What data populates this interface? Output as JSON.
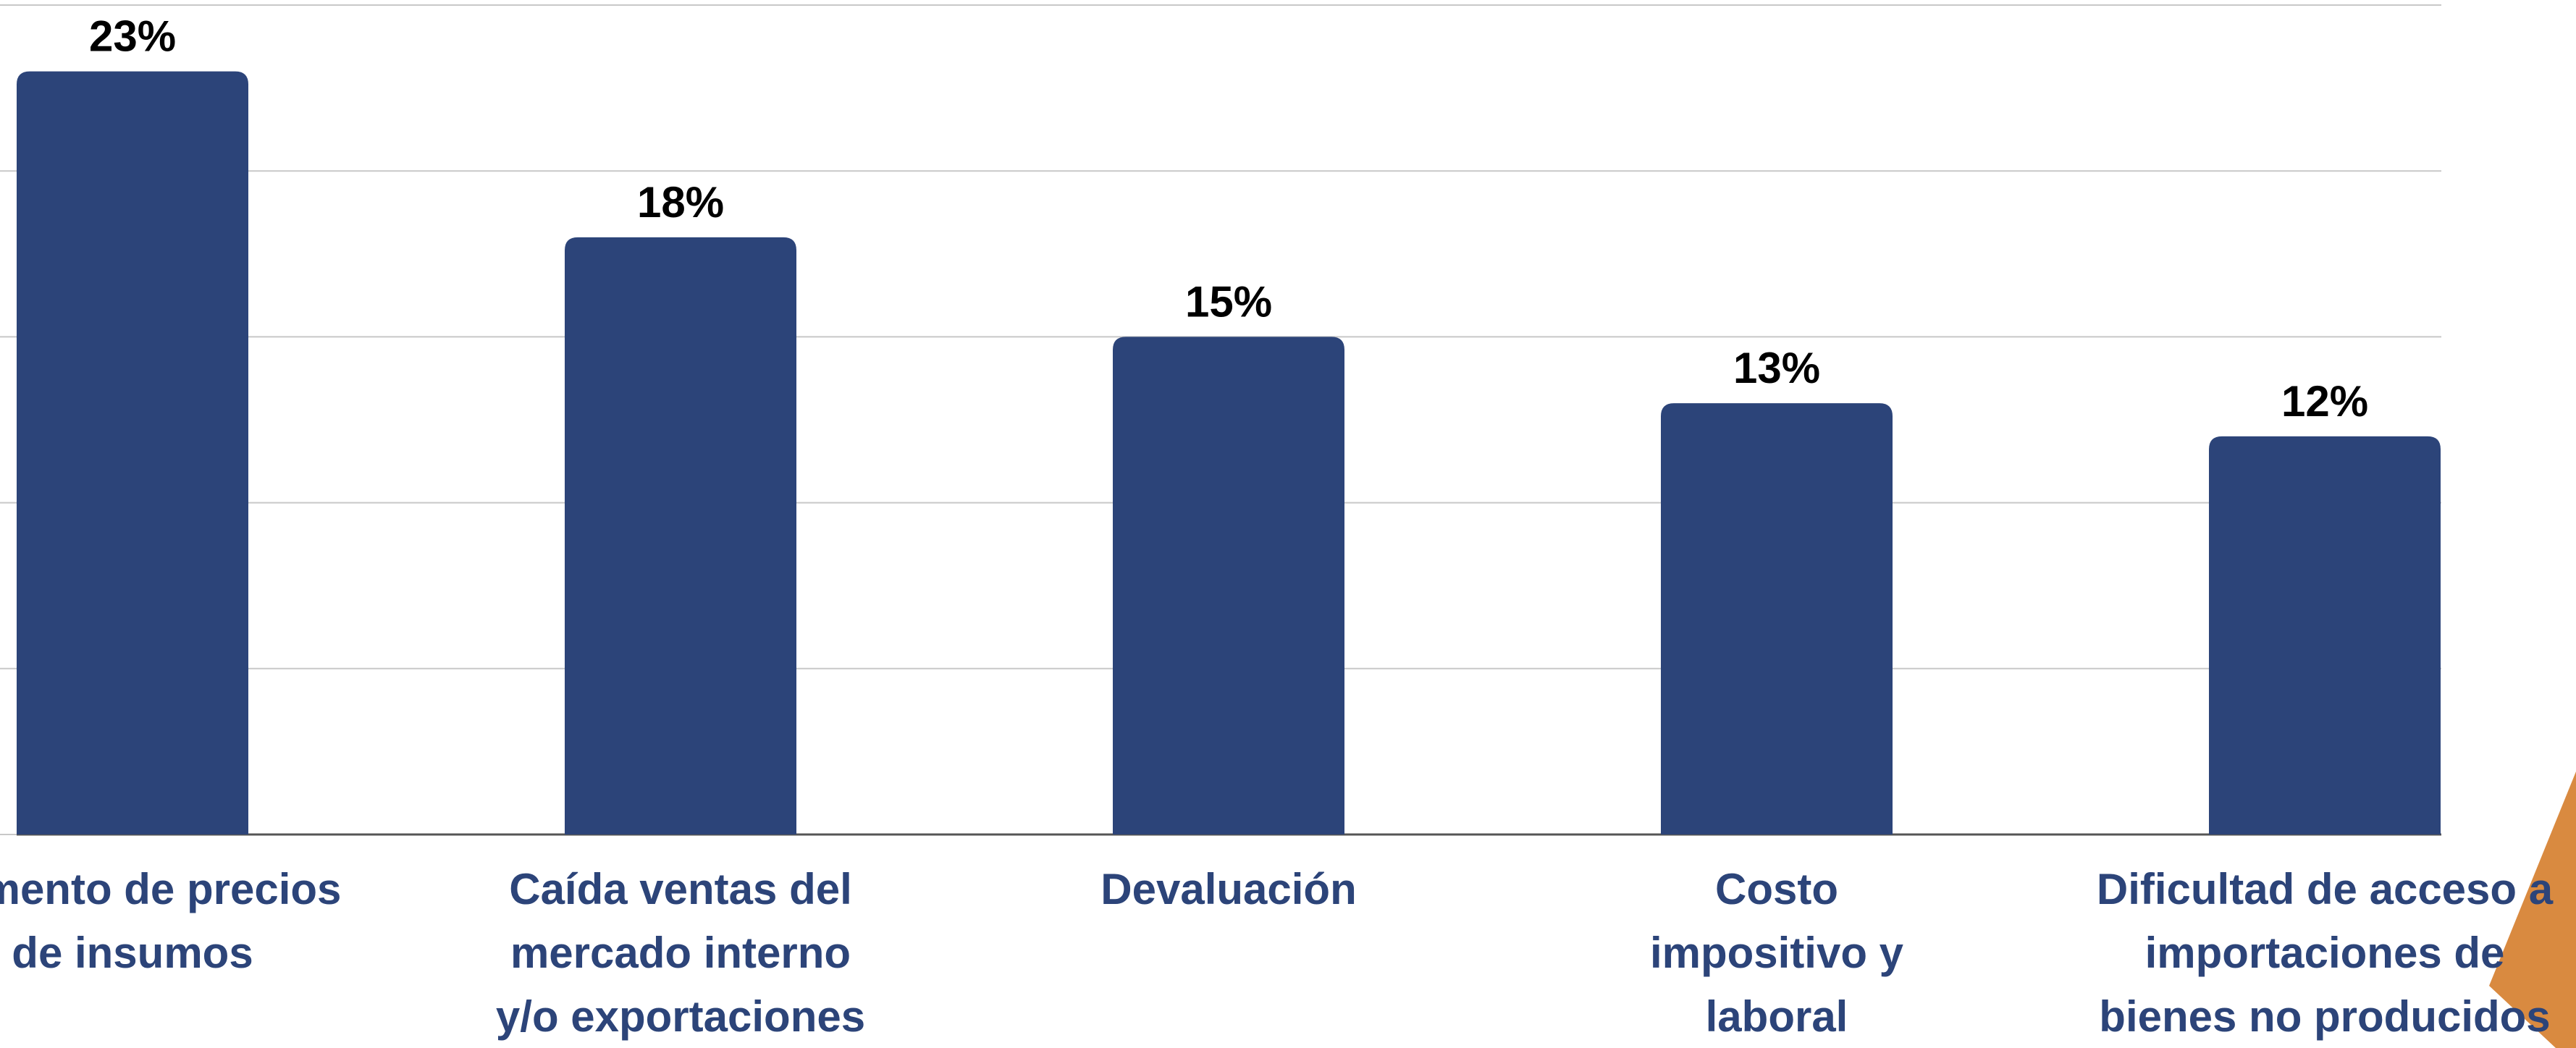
{
  "chart_data": {
    "type": "bar",
    "categories": [
      "Aumento de precios\nde insumos",
      "Caída ventas del\nmercado interno\ny/o exportaciones",
      "Devaluación",
      "Costo\nimpositivo y\nlaboral",
      "Dificultad de acceso a\nimportaciones de\nbienes no producidos"
    ],
    "values": [
      23,
      18,
      15,
      13,
      12
    ],
    "value_labels": [
      "23%",
      "18%",
      "15%",
      "13%",
      "12%"
    ],
    "color": "#2c4479",
    "ylim": [
      0,
      25
    ],
    "yticks": [
      0,
      5,
      10,
      15,
      20,
      25
    ],
    "grid": true
  }
}
